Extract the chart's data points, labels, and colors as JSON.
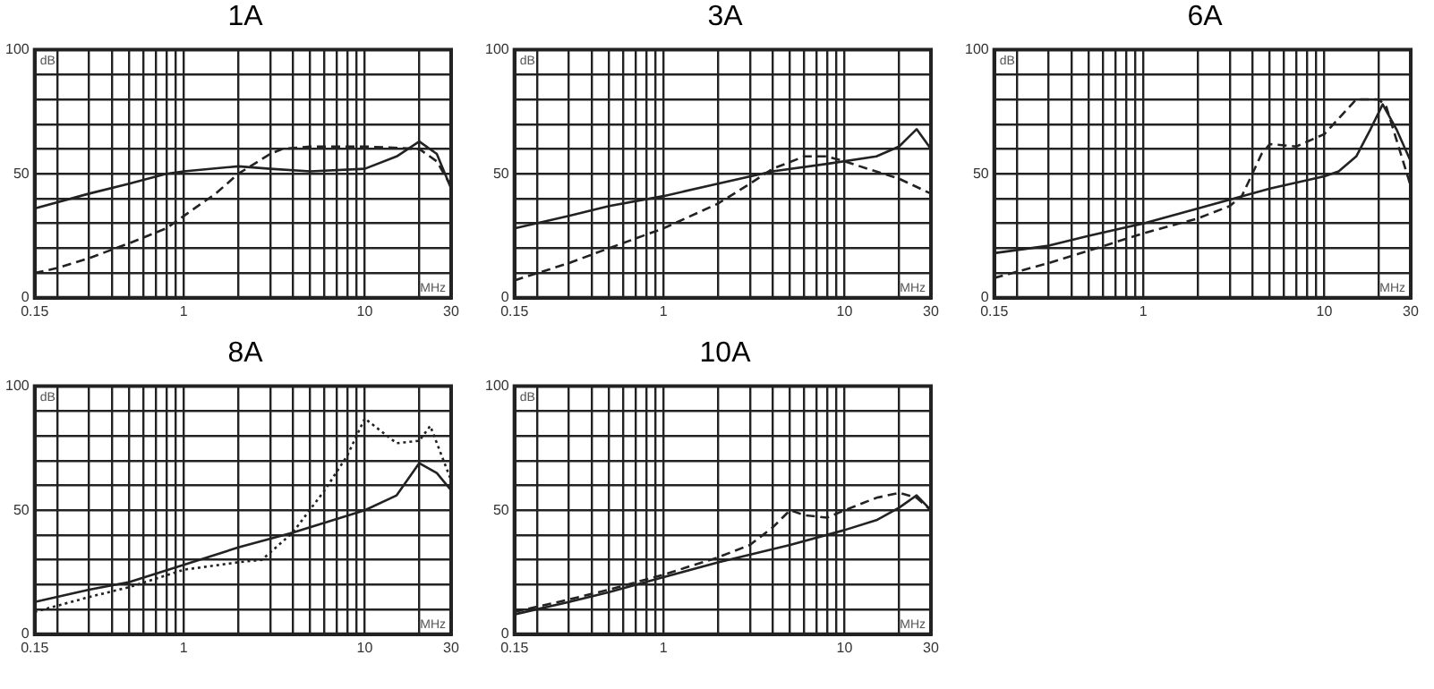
{
  "chart_data": [
    {
      "type": "line",
      "title": "1A",
      "xlabel": "MHz",
      "ylabel": "dB",
      "log": "x",
      "grid": true,
      "legend": false,
      "marker": "none",
      "xlim": [
        0.15,
        30
      ],
      "ylim": [
        0,
        100
      ],
      "xticks": [
        0.15,
        {
          "value": 0.2,
          "label": null
        },
        {
          "value": 0.3,
          "label": null
        },
        {
          "value": 0.4,
          "label": null
        },
        {
          "value": 0.5,
          "label": null
        },
        {
          "value": 0.6,
          "label": null
        },
        {
          "value": 0.7,
          "label": null
        },
        {
          "value": 0.8,
          "label": null
        },
        {
          "value": 0.9,
          "label": null
        },
        1,
        {
          "value": 2,
          "label": null
        },
        {
          "value": 3,
          "label": null
        },
        {
          "value": 4,
          "label": null
        },
        {
          "value": 5,
          "label": null
        },
        {
          "value": 6,
          "label": null
        },
        {
          "value": 7,
          "label": null
        },
        {
          "value": 8,
          "label": null
        },
        {
          "value": 9,
          "label": null
        },
        10,
        {
          "value": 20,
          "label": null
        },
        30
      ],
      "yticks": [
        0,
        {
          "value": 10,
          "label": null
        },
        {
          "value": 20,
          "label": null
        },
        {
          "value": 30,
          "label": null
        },
        {
          "value": 40,
          "label": null
        },
        50,
        {
          "value": 60,
          "label": null
        },
        {
          "value": 70,
          "label": null
        },
        {
          "value": 80,
          "label": null
        },
        {
          "value": 90,
          "label": null
        },
        100
      ],
      "series": [
        {
          "color": "#222222",
          "line_style": "solid",
          "x": [
            0.15,
            0.3,
            0.5,
            0.8,
            1,
            2,
            3,
            5,
            10,
            15,
            20,
            25,
            30
          ],
          "values": [
            36,
            42,
            46,
            50,
            51,
            53,
            52,
            51,
            52,
            57,
            63,
            58,
            44
          ]
        },
        {
          "color": "#222222",
          "line_style": "dashed",
          "x": [
            0.15,
            0.2,
            0.3,
            0.5,
            0.8,
            1,
            1.5,
            2,
            3,
            3.5,
            5,
            10,
            20,
            25,
            30
          ],
          "values": [
            10,
            12,
            16,
            22,
            28,
            33,
            42,
            50,
            58,
            60,
            61,
            61,
            60,
            55,
            45
          ]
        }
      ]
    },
    {
      "type": "line",
      "title": "3A",
      "xlabel": "MHz",
      "ylabel": "dB",
      "log": "x",
      "grid": true,
      "legend": false,
      "marker": "none",
      "xlim": [
        0.15,
        30
      ],
      "ylim": [
        0,
        100
      ],
      "xticks": [
        0.15,
        {
          "value": 0.2,
          "label": null
        },
        {
          "value": 0.3,
          "label": null
        },
        {
          "value": 0.4,
          "label": null
        },
        {
          "value": 0.5,
          "label": null
        },
        {
          "value": 0.6,
          "label": null
        },
        {
          "value": 0.7,
          "label": null
        },
        {
          "value": 0.8,
          "label": null
        },
        {
          "value": 0.9,
          "label": null
        },
        1,
        {
          "value": 2,
          "label": null
        },
        {
          "value": 3,
          "label": null
        },
        {
          "value": 4,
          "label": null
        },
        {
          "value": 5,
          "label": null
        },
        {
          "value": 6,
          "label": null
        },
        {
          "value": 7,
          "label": null
        },
        {
          "value": 8,
          "label": null
        },
        {
          "value": 9,
          "label": null
        },
        10,
        {
          "value": 20,
          "label": null
        },
        30
      ],
      "yticks": [
        0,
        {
          "value": 10,
          "label": null
        },
        {
          "value": 20,
          "label": null
        },
        {
          "value": 30,
          "label": null
        },
        {
          "value": 40,
          "label": null
        },
        50,
        {
          "value": 60,
          "label": null
        },
        {
          "value": 70,
          "label": null
        },
        {
          "value": 80,
          "label": null
        },
        {
          "value": 90,
          "label": null
        },
        100
      ],
      "series": [
        {
          "color": "#222222",
          "line_style": "solid",
          "x": [
            0.15,
            0.3,
            0.5,
            1,
            2,
            4,
            8,
            15,
            20,
            25,
            30
          ],
          "values": [
            28,
            33,
            37,
            41,
            46,
            51,
            54,
            57,
            61,
            68,
            60
          ]
        },
        {
          "color": "#222222",
          "line_style": "dashed",
          "x": [
            0.15,
            0.3,
            0.5,
            1,
            2,
            3,
            4,
            6,
            8,
            10,
            20,
            30
          ],
          "values": [
            7,
            14,
            20,
            28,
            38,
            46,
            52,
            57,
            57,
            55,
            48,
            42
          ]
        }
      ]
    },
    {
      "type": "line",
      "title": "6A",
      "xlabel": "MHz",
      "ylabel": "dB",
      "log": "x",
      "grid": true,
      "legend": false,
      "marker": "none",
      "xlim": [
        0.15,
        30
      ],
      "ylim": [
        0,
        100
      ],
      "xticks": [
        0.15,
        {
          "value": 0.2,
          "label": null
        },
        {
          "value": 0.3,
          "label": null
        },
        {
          "value": 0.4,
          "label": null
        },
        {
          "value": 0.5,
          "label": null
        },
        {
          "value": 0.6,
          "label": null
        },
        {
          "value": 0.7,
          "label": null
        },
        {
          "value": 0.8,
          "label": null
        },
        {
          "value": 0.9,
          "label": null
        },
        1,
        {
          "value": 2,
          "label": null
        },
        {
          "value": 3,
          "label": null
        },
        {
          "value": 4,
          "label": null
        },
        {
          "value": 5,
          "label": null
        },
        {
          "value": 6,
          "label": null
        },
        {
          "value": 7,
          "label": null
        },
        {
          "value": 8,
          "label": null
        },
        {
          "value": 9,
          "label": null
        },
        10,
        {
          "value": 20,
          "label": null
        },
        30
      ],
      "yticks": [
        0,
        {
          "value": 10,
          "label": null
        },
        {
          "value": 20,
          "label": null
        },
        {
          "value": 30,
          "label": null
        },
        {
          "value": 40,
          "label": null
        },
        50,
        {
          "value": 60,
          "label": null
        },
        {
          "value": 70,
          "label": null
        },
        {
          "value": 80,
          "label": null
        },
        {
          "value": 90,
          "label": null
        },
        100
      ],
      "series": [
        {
          "color": "#222222",
          "line_style": "solid",
          "x": [
            0.15,
            0.3,
            0.5,
            1,
            2,
            5,
            10,
            12,
            15,
            18,
            21,
            25,
            30
          ],
          "values": [
            18,
            21,
            25,
            30,
            36,
            44,
            49,
            51,
            57,
            68,
            78,
            68,
            55
          ]
        },
        {
          "color": "#222222",
          "line_style": "dashed",
          "x": [
            0.15,
            0.3,
            0.5,
            1,
            2,
            3,
            3.5,
            4,
            4.5,
            5,
            7,
            10,
            15,
            20,
            22,
            30
          ],
          "values": [
            8,
            14,
            19,
            26,
            32,
            37,
            41,
            50,
            58,
            62,
            61,
            66,
            80,
            80,
            77,
            45
          ]
        }
      ]
    },
    {
      "type": "line",
      "title": "8A",
      "xlabel": "MHz",
      "ylabel": "dB",
      "log": "x",
      "grid": true,
      "legend": false,
      "marker": "none",
      "xlim": [
        0.15,
        30
      ],
      "ylim": [
        0,
        100
      ],
      "xticks": [
        0.15,
        {
          "value": 0.2,
          "label": null
        },
        {
          "value": 0.3,
          "label": null
        },
        {
          "value": 0.4,
          "label": null
        },
        {
          "value": 0.5,
          "label": null
        },
        {
          "value": 0.6,
          "label": null
        },
        {
          "value": 0.7,
          "label": null
        },
        {
          "value": 0.8,
          "label": null
        },
        {
          "value": 0.9,
          "label": null
        },
        1,
        {
          "value": 2,
          "label": null
        },
        {
          "value": 3,
          "label": null
        },
        {
          "value": 4,
          "label": null
        },
        {
          "value": 5,
          "label": null
        },
        {
          "value": 6,
          "label": null
        },
        {
          "value": 7,
          "label": null
        },
        {
          "value": 8,
          "label": null
        },
        {
          "value": 9,
          "label": null
        },
        10,
        {
          "value": 20,
          "label": null
        },
        30
      ],
      "yticks": [
        0,
        {
          "value": 10,
          "label": null
        },
        {
          "value": 20,
          "label": null
        },
        {
          "value": 30,
          "label": null
        },
        {
          "value": 40,
          "label": null
        },
        50,
        {
          "value": 60,
          "label": null
        },
        {
          "value": 70,
          "label": null
        },
        {
          "value": 80,
          "label": null
        },
        {
          "value": 90,
          "label": null
        },
        100
      ],
      "series": [
        {
          "color": "#222222",
          "line_style": "solid",
          "x": [
            0.15,
            0.3,
            0.5,
            1,
            2,
            4,
            10,
            15,
            20,
            25,
            30
          ],
          "values": [
            13,
            18,
            21,
            28,
            35,
            41,
            50,
            56,
            69,
            65,
            58
          ]
        },
        {
          "color": "#222222",
          "line_style": "dotted",
          "x": [
            0.15,
            0.3,
            0.5,
            1,
            2,
            2.7,
            4,
            6,
            8,
            10,
            15,
            20,
            23,
            30
          ],
          "values": [
            9,
            15,
            19,
            26,
            29,
            30,
            41,
            58,
            72,
            87,
            77,
            78,
            84,
            62
          ]
        }
      ]
    },
    {
      "type": "line",
      "title": "10A",
      "xlabel": "MHz",
      "ylabel": "dB",
      "log": "x",
      "grid": true,
      "legend": false,
      "marker": "none",
      "xlim": [
        0.15,
        30
      ],
      "ylim": [
        0,
        100
      ],
      "xticks": [
        0.15,
        {
          "value": 0.2,
          "label": null
        },
        {
          "value": 0.3,
          "label": null
        },
        {
          "value": 0.4,
          "label": null
        },
        {
          "value": 0.5,
          "label": null
        },
        {
          "value": 0.6,
          "label": null
        },
        {
          "value": 0.7,
          "label": null
        },
        {
          "value": 0.8,
          "label": null
        },
        {
          "value": 0.9,
          "label": null
        },
        1,
        {
          "value": 2,
          "label": null
        },
        {
          "value": 3,
          "label": null
        },
        {
          "value": 4,
          "label": null
        },
        {
          "value": 5,
          "label": null
        },
        {
          "value": 6,
          "label": null
        },
        {
          "value": 7,
          "label": null
        },
        {
          "value": 8,
          "label": null
        },
        {
          "value": 9,
          "label": null
        },
        10,
        {
          "value": 20,
          "label": null
        },
        30
      ],
      "yticks": [
        0,
        {
          "value": 10,
          "label": null
        },
        {
          "value": 20,
          "label": null
        },
        {
          "value": 30,
          "label": null
        },
        {
          "value": 40,
          "label": null
        },
        50,
        {
          "value": 60,
          "label": null
        },
        {
          "value": 70,
          "label": null
        },
        {
          "value": 80,
          "label": null
        },
        {
          "value": 90,
          "label": null
        },
        100
      ],
      "series": [
        {
          "color": "#222222",
          "line_style": "solid",
          "x": [
            0.15,
            0.3,
            0.5,
            1,
            2,
            5,
            10,
            15,
            20,
            25,
            30
          ],
          "values": [
            8,
            13,
            17,
            23,
            29,
            36,
            42,
            46,
            51,
            56,
            50
          ]
        },
        {
          "color": "#222222",
          "line_style": "dashed",
          "x": [
            0.15,
            0.3,
            0.5,
            1,
            2,
            3,
            4,
            5,
            6,
            8,
            10,
            15,
            20,
            25,
            30
          ],
          "values": [
            9,
            14,
            18,
            24,
            31,
            36,
            43,
            50,
            48,
            47,
            50,
            55,
            57,
            55,
            50
          ]
        }
      ]
    }
  ]
}
